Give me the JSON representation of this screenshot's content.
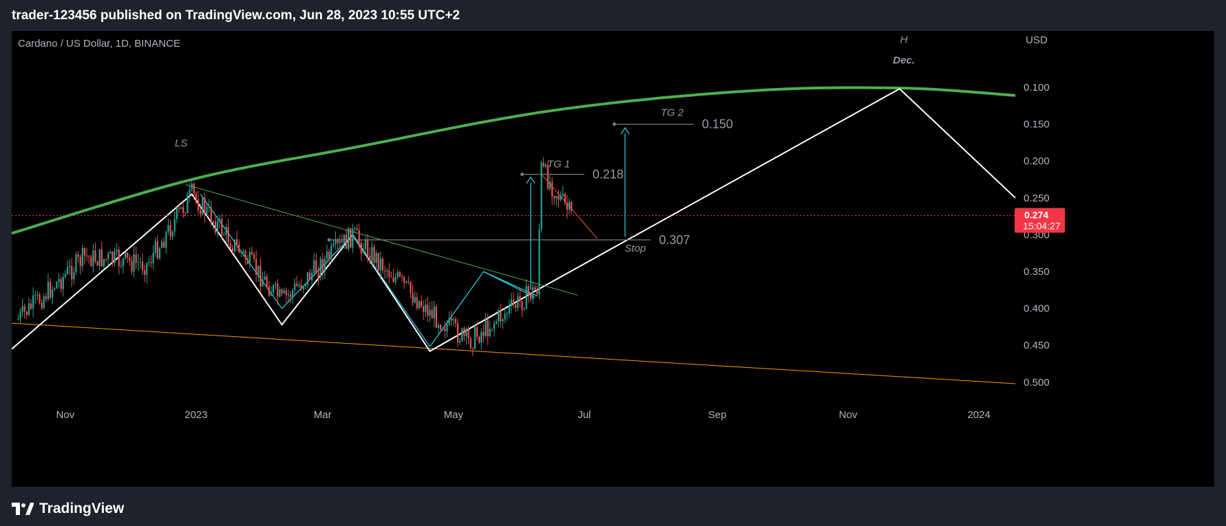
{
  "header": {
    "publish_line": "trader-123456 published on TradingView.com, Jun 28, 2023 10:55 UTC+2"
  },
  "footer": {
    "brand": "TradingView",
    "logo_icon": "tradingview-logo-icon"
  },
  "chart_data": {
    "type": "candlestick",
    "title": "Cardano / US Dollar, 1D, BINANCE",
    "currency": "USD",
    "y_axis_inverted": true,
    "y_ticks": [
      "0.100",
      "0.150",
      "0.200",
      "0.250",
      "0.300",
      "0.350",
      "0.400",
      "0.450",
      "0.500"
    ],
    "y_tick_values": [
      0.1,
      0.15,
      0.2,
      0.25,
      0.3,
      0.35,
      0.4,
      0.45,
      0.5
    ],
    "ylim": [
      0.05,
      0.52
    ],
    "x_ticks": [
      "Nov",
      "2023",
      "Mar",
      "May",
      "Jul",
      "Sep",
      "Nov",
      "2024"
    ],
    "x_tick_dates": [
      "2022-11-01",
      "2023-01-01",
      "2023-03-01",
      "2023-05-01",
      "2023-07-01",
      "2023-09-01",
      "2023-11-01",
      "2024-01-01"
    ],
    "xlim": [
      "2022-10-07",
      "2024-01-18"
    ],
    "current_price": {
      "value": "0.274",
      "countdown": "15:04:27",
      "color": "#f23645"
    },
    "colors": {
      "up": "#26a69a",
      "down": "#ef5350",
      "arc": "#4caf50",
      "support": "#ff9800",
      "annotation": "#9598a1"
    },
    "key_points": [
      {
        "date": "2022-10-10",
        "price": 0.415
      },
      {
        "date": "2022-11-10",
        "price": 0.33
      },
      {
        "date": "2022-12-09",
        "price": 0.34
      },
      {
        "date": "2022-12-30",
        "price": 0.245
      },
      {
        "date": "2023-02-10",
        "price": 0.39
      },
      {
        "date": "2023-03-15",
        "price": 0.3
      },
      {
        "date": "2023-04-20",
        "price": 0.405
      },
      {
        "date": "2023-05-08",
        "price": 0.445
      },
      {
        "date": "2023-06-09",
        "price": 0.373
      },
      {
        "date": "2023-06-11",
        "price": 0.21
      },
      {
        "date": "2023-06-25",
        "price": 0.275
      }
    ],
    "levels": [
      {
        "name": "TG 2",
        "value": "0.150",
        "date_from": "2023-07-15",
        "date_to": "2023-08-21"
      },
      {
        "name": "TG 1",
        "value": "0.218",
        "date_from": "2023-06-02",
        "date_to": "2023-07-01"
      },
      {
        "name": "Stop",
        "value": "0.307",
        "date_from": "2023-03-04",
        "date_to": "2023-08-01"
      }
    ],
    "labels": {
      "left_shoulder": "LS",
      "head": "H",
      "head_month": "Dec."
    }
  }
}
